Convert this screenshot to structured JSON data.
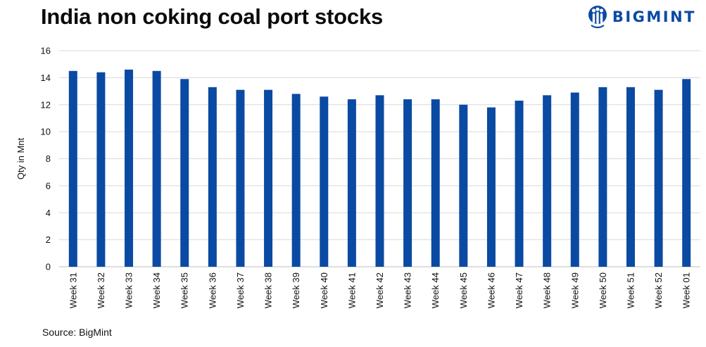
{
  "header": {
    "title": "India non coking coal port stocks",
    "brand_name": "BIGMINT",
    "brand_icon": "bigmint-logo-icon"
  },
  "footer": {
    "source": "Source: BigMint"
  },
  "colors": {
    "bar": "#0a4aa3",
    "brand": "#0a4aa3",
    "grid": "#d9d9d9",
    "axis": "#bfbfbf",
    "text": "#111111"
  },
  "chart_data": {
    "type": "bar",
    "title": "India non coking coal port stocks",
    "xlabel": "",
    "ylabel": "Qty in Mnt",
    "ylim": [
      0,
      16
    ],
    "yticks": [
      0,
      2,
      4,
      6,
      8,
      10,
      12,
      14,
      16
    ],
    "grid": true,
    "legend": "none",
    "categories": [
      "Week 31",
      "Week 32",
      "Week 33",
      "Week 34",
      "Week 35",
      "Week 36",
      "Week 37",
      "Week 38",
      "Week 39",
      "Week 40",
      "Week 41",
      "Week 42",
      "Week 43",
      "Week 44",
      "Week 45",
      "Week 46",
      "Week 47",
      "Week 48",
      "Week 49",
      "Week 50",
      "Week 51",
      "Week 52",
      "Week 01"
    ],
    "values": [
      14.5,
      14.4,
      14.6,
      14.5,
      13.9,
      13.3,
      13.1,
      13.1,
      12.8,
      12.6,
      12.4,
      12.7,
      12.4,
      12.4,
      12.0,
      11.8,
      12.3,
      12.7,
      12.9,
      13.3,
      13.3,
      13.1,
      13.9
    ]
  }
}
